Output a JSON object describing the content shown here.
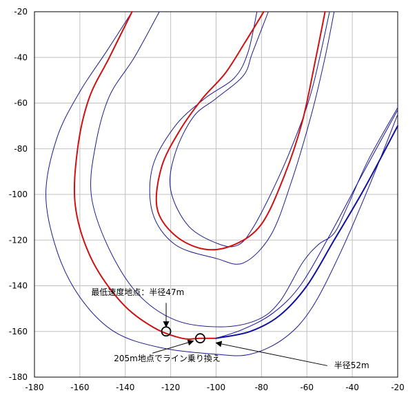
{
  "chart_data": {
    "type": "line",
    "title": "",
    "xlabel": "",
    "ylabel": "",
    "xlim": [
      -180,
      -20
    ],
    "ylim": [
      -180,
      -20
    ],
    "xticks": [
      -180,
      -160,
      -140,
      -120,
      -100,
      -80,
      -60,
      -40,
      -20
    ],
    "yticks": [
      -20,
      -40,
      -60,
      -80,
      -100,
      -120,
      -140,
      -160,
      -180
    ],
    "grid": true,
    "legend": "none",
    "colors": {
      "boundary": "#1a1a8c",
      "red_line": "#d01010",
      "blue_line": "#1010a0",
      "grid": "#c0c0c0"
    },
    "series": [
      {
        "color": "#1a1a8c",
        "width": 1,
        "points": [
          [
            -137,
            -20
          ],
          [
            -148,
            -37
          ],
          [
            -160,
            -55
          ],
          [
            -170,
            -75
          ],
          [
            -175,
            -100
          ],
          [
            -170,
            -125
          ],
          [
            -160,
            -145
          ],
          [
            -145,
            -160
          ],
          [
            -125,
            -167
          ],
          [
            -100,
            -170
          ],
          [
            -85,
            -170
          ],
          [
            -70,
            -163
          ],
          [
            -58,
            -150
          ],
          [
            -45,
            -125
          ],
          [
            -32,
            -95
          ],
          [
            -20,
            -65
          ]
        ]
      },
      {
        "color": "#1a1a8c",
        "width": 1,
        "points": [
          [
            -125,
            -20
          ],
          [
            -136,
            -40
          ],
          [
            -147,
            -57
          ],
          [
            -153,
            -78
          ],
          [
            -155,
            -100
          ],
          [
            -148,
            -122
          ],
          [
            -135,
            -143
          ],
          [
            -118,
            -155
          ],
          [
            -98,
            -158
          ],
          [
            -82,
            -155
          ],
          [
            -72,
            -147
          ],
          [
            -62,
            -130
          ],
          [
            -55,
            -122
          ],
          [
            -48,
            -117
          ],
          [
            -42,
            -105
          ],
          [
            -33,
            -85
          ],
          [
            -20,
            -62
          ]
        ]
      },
      {
        "color": "#1a1a8c",
        "width": 1,
        "points": [
          [
            -82,
            -20
          ],
          [
            -86,
            -38
          ],
          [
            -92,
            -49
          ],
          [
            -105,
            -58
          ],
          [
            -118,
            -70
          ],
          [
            -128,
            -88
          ],
          [
            -128,
            -108
          ],
          [
            -118,
            -122
          ],
          [
            -100,
            -128
          ],
          [
            -88,
            -130
          ],
          [
            -76,
            -118
          ],
          [
            -67,
            -95
          ],
          [
            -58,
            -65
          ],
          [
            -52,
            -40
          ],
          [
            -48,
            -20
          ]
        ]
      },
      {
        "color": "#1a1a8c",
        "width": 1,
        "points": [
          [
            -77,
            -20
          ],
          [
            -84,
            -38
          ],
          [
            -88,
            -48
          ],
          [
            -100,
            -58
          ],
          [
            -110,
            -66
          ],
          [
            -118,
            -82
          ],
          [
            -120,
            -98
          ],
          [
            -112,
            -114
          ],
          [
            -98,
            -122
          ],
          [
            -90,
            -122
          ],
          [
            -84,
            -115
          ],
          [
            -76,
            -100
          ],
          [
            -67,
            -80
          ],
          [
            -58,
            -55
          ],
          [
            -50,
            -20
          ]
        ]
      },
      {
        "color": "#d01010",
        "width": 2,
        "points": [
          [
            -137,
            -20
          ],
          [
            -147,
            -40
          ],
          [
            -156,
            -58
          ],
          [
            -161,
            -80
          ],
          [
            -162,
            -105
          ],
          [
            -155,
            -128
          ],
          [
            -142,
            -147
          ],
          [
            -128,
            -158
          ],
          [
            -115,
            -163
          ],
          [
            -107,
            -163
          ],
          [
            -100,
            -163
          ]
        ]
      },
      {
        "color": "#d01010",
        "width": 2,
        "points": [
          [
            -79,
            -20
          ],
          [
            -87,
            -33
          ],
          [
            -96,
            -47
          ],
          [
            -106,
            -58
          ],
          [
            -116,
            -72
          ],
          [
            -124,
            -88
          ],
          [
            -126,
            -106
          ],
          [
            -118,
            -118
          ],
          [
            -105,
            -124
          ],
          [
            -92,
            -122
          ],
          [
            -80,
            -113
          ],
          [
            -70,
            -92
          ],
          [
            -62,
            -68
          ],
          [
            -56,
            -40
          ],
          [
            -52,
            -20
          ]
        ]
      },
      {
        "color": "#1010a0",
        "width": 2,
        "points": [
          [
            -100,
            -163
          ],
          [
            -85,
            -160
          ],
          [
            -72,
            -153
          ],
          [
            -60,
            -140
          ],
          [
            -48,
            -120
          ],
          [
            -35,
            -98
          ],
          [
            -20,
            -70
          ]
        ]
      },
      {
        "color": "#1010a0",
        "width": 1,
        "points": [
          [
            -100,
            -163
          ],
          [
            -88,
            -159
          ],
          [
            -75,
            -152
          ],
          [
            -63,
            -140
          ],
          [
            -50,
            -118
          ],
          [
            -36,
            -92
          ],
          [
            -20,
            -63
          ]
        ]
      }
    ],
    "markers": [
      {
        "shape": "circle",
        "x": -122,
        "y": -160
      },
      {
        "shape": "circle",
        "x": -107,
        "y": -163
      }
    ],
    "annotations": [
      {
        "text": "最低速度地点：半径47m",
        "tx": -155,
        "ty": -144,
        "ax": -122,
        "ay": -158
      },
      {
        "text": "205m地点でライン乗り換え",
        "tx": -145,
        "ty": -173,
        "ax": -110,
        "ay": -164
      },
      {
        "text": "半径52m",
        "tx": -48,
        "ty": -176,
        "ax": -100,
        "ay": -165
      }
    ]
  }
}
